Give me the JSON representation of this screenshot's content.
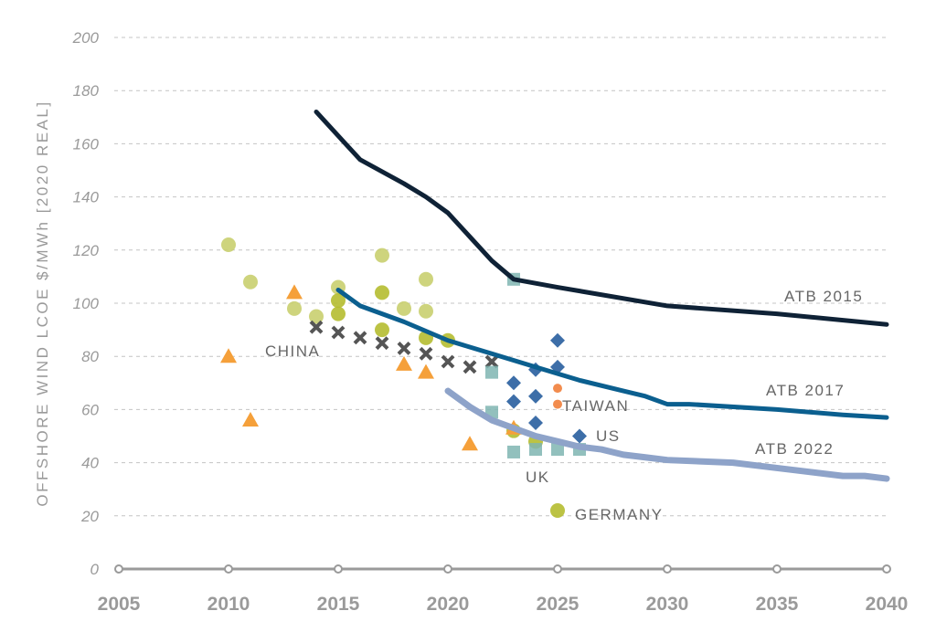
{
  "chart_data": {
    "type": "line+scatter",
    "ylabel": "OFFSHORE WIND LCOE $/MWh [2020 REAL]",
    "xlim": [
      2005,
      2040
    ],
    "ylim": [
      0,
      200
    ],
    "xticks": [
      2005,
      2010,
      2015,
      2020,
      2025,
      2030,
      2035,
      2040
    ],
    "yticks": [
      0,
      20,
      40,
      60,
      80,
      100,
      120,
      140,
      160,
      180,
      200
    ],
    "grid": "horizontal dashed",
    "lines": [
      {
        "name": "ATB 2015",
        "color": "#0f2236",
        "points": [
          [
            2014,
            172
          ],
          [
            2016,
            154
          ],
          [
            2018,
            145
          ],
          [
            2019,
            140
          ],
          [
            2020,
            134
          ],
          [
            2021,
            125
          ],
          [
            2022,
            116
          ],
          [
            2023,
            109
          ],
          [
            2025,
            106
          ],
          [
            2030,
            99
          ],
          [
            2035,
            96
          ],
          [
            2040,
            92
          ]
        ]
      },
      {
        "name": "ATB 2017",
        "color": "#0b5f8f",
        "points": [
          [
            2015,
            105
          ],
          [
            2016,
            99
          ],
          [
            2018,
            93
          ],
          [
            2020,
            86
          ],
          [
            2022,
            81
          ],
          [
            2024,
            76
          ],
          [
            2026,
            71
          ],
          [
            2028,
            67
          ],
          [
            2029,
            65
          ],
          [
            2030,
            62
          ],
          [
            2031,
            62
          ],
          [
            2035,
            60
          ],
          [
            2038,
            58
          ],
          [
            2040,
            57
          ]
        ]
      },
      {
        "name": "ATB 2022",
        "color": "#8ea3c9",
        "points": [
          [
            2020,
            67
          ],
          [
            2021,
            61
          ],
          [
            2022,
            56
          ],
          [
            2023,
            53
          ],
          [
            2024,
            50
          ],
          [
            2025,
            48
          ],
          [
            2026,
            46
          ],
          [
            2027,
            45
          ],
          [
            2028,
            43
          ],
          [
            2029,
            42
          ],
          [
            2030,
            41
          ],
          [
            2033,
            40
          ],
          [
            2035,
            38
          ],
          [
            2036,
            37
          ],
          [
            2038,
            35
          ],
          [
            2039,
            35
          ],
          [
            2040,
            34
          ]
        ]
      }
    ],
    "scatter": [
      {
        "marker": "circle",
        "color": "#c9cf6f",
        "points": [
          [
            2010,
            122
          ],
          [
            2011,
            108
          ],
          [
            2013,
            98
          ],
          [
            2014,
            95
          ],
          [
            2015,
            106
          ],
          [
            2017,
            118
          ],
          [
            2018,
            98
          ],
          [
            2019,
            109
          ],
          [
            2019,
            97
          ]
        ]
      },
      {
        "marker": "circle",
        "color": "#b5bd30",
        "points": [
          [
            2015,
            101
          ],
          [
            2015,
            96
          ],
          [
            2017,
            104
          ],
          [
            2017,
            90
          ],
          [
            2019,
            87
          ],
          [
            2020,
            86
          ],
          [
            2023,
            52
          ],
          [
            2024,
            48
          ]
        ]
      },
      {
        "name": "GERMANY",
        "marker": "circle",
        "color": "#b5bd30",
        "points": [
          [
            2025,
            22
          ]
        ]
      },
      {
        "marker": "triangle",
        "color": "#f5a03a",
        "points": [
          [
            2010,
            80
          ],
          [
            2011,
            56
          ],
          [
            2013,
            104
          ],
          [
            2018,
            77
          ],
          [
            2019,
            74
          ],
          [
            2021,
            47
          ],
          [
            2023,
            53
          ]
        ]
      },
      {
        "name": "CHINA",
        "marker": "x",
        "color": "#555555",
        "points": [
          [
            2014,
            91
          ],
          [
            2015,
            89
          ],
          [
            2016,
            87
          ],
          [
            2017,
            85
          ],
          [
            2018,
            83
          ],
          [
            2019,
            81
          ],
          [
            2020,
            78
          ],
          [
            2021,
            76
          ],
          [
            2022,
            78
          ]
        ]
      },
      {
        "name": "UK",
        "marker": "square",
        "color": "#7fb5b2",
        "points": [
          [
            2023,
            109
          ],
          [
            2022,
            74
          ],
          [
            2022,
            59
          ],
          [
            2023,
            44
          ],
          [
            2024,
            45
          ],
          [
            2025,
            45
          ],
          [
            2026,
            45
          ]
        ]
      },
      {
        "name": "US",
        "marker": "diamond",
        "color": "#3d6ea8",
        "points": [
          [
            2023,
            70
          ],
          [
            2023,
            63
          ],
          [
            2024,
            75
          ],
          [
            2024,
            65
          ],
          [
            2024,
            55
          ],
          [
            2025,
            86
          ],
          [
            2025,
            76
          ],
          [
            2026,
            50
          ]
        ]
      },
      {
        "name": "TAIWAN",
        "marker": "smallcircle",
        "color": "#f28c4e",
        "points": [
          [
            2025,
            68
          ],
          [
            2025,
            62
          ]
        ]
      }
    ]
  }
}
